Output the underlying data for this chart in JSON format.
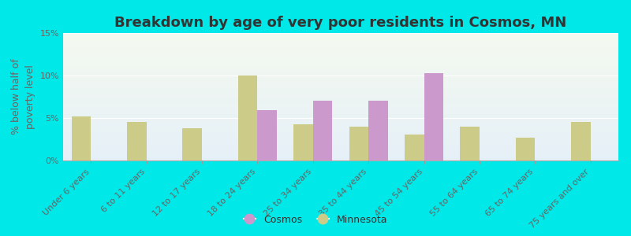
{
  "title": "Breakdown by age of very poor residents in Cosmos, MN",
  "ylabel": "% below half of\npoverty level",
  "categories": [
    "Under 6 years",
    "6 to 11 years",
    "12 to 17 years",
    "18 to 24 years",
    "25 to 34 years",
    "35 to 44 years",
    "45 to 54 years",
    "55 to 64 years",
    "65 to 74 years",
    "75 years and over"
  ],
  "cosmos_values": [
    0,
    0,
    0,
    5.9,
    7.0,
    7.0,
    10.3,
    0,
    0,
    0
  ],
  "minnesota_values": [
    5.2,
    4.5,
    3.8,
    10.0,
    4.3,
    4.0,
    3.1,
    4.0,
    2.7,
    4.5
  ],
  "cosmos_color": "#cc99cc",
  "minnesota_color": "#cccc88",
  "background_color": "#00e8e8",
  "ylim": [
    0,
    15
  ],
  "yticks": [
    0,
    5,
    10,
    15
  ],
  "ytick_labels": [
    "0%",
    "5%",
    "10%",
    "15%"
  ],
  "bar_width": 0.35,
  "title_fontsize": 13,
  "axis_label_fontsize": 9,
  "tick_fontsize": 8,
  "legend_cosmos": "Cosmos",
  "legend_minnesota": "Minnesota"
}
